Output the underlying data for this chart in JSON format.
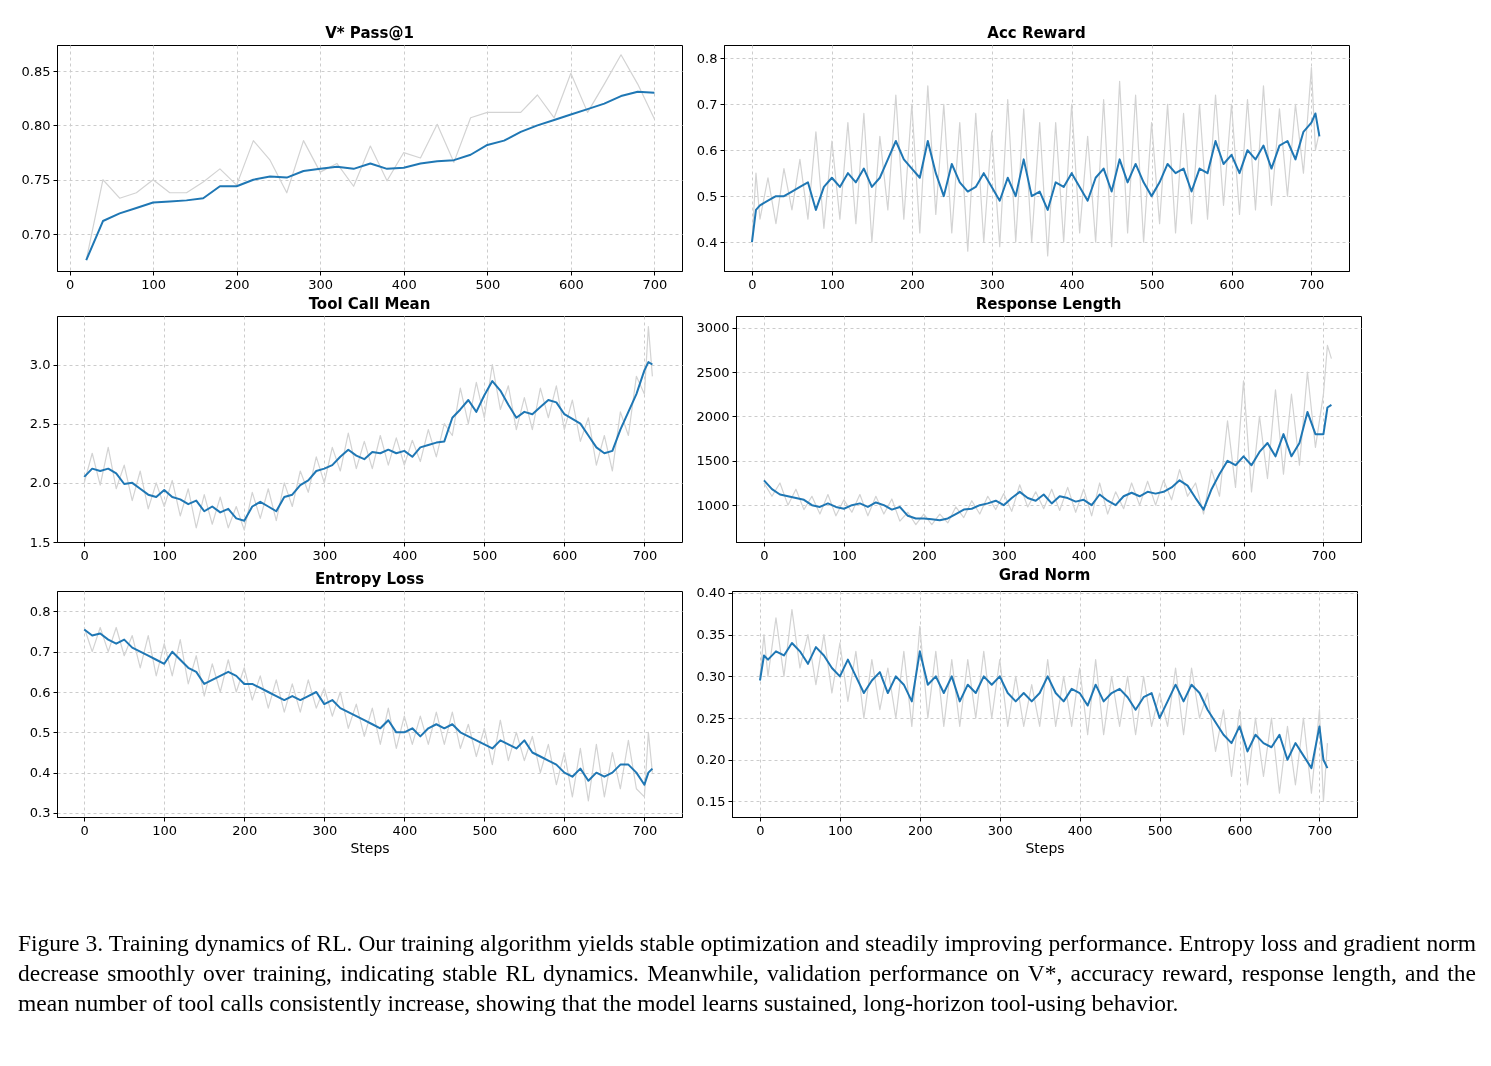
{
  "chart_data": [
    {
      "type": "line",
      "title": "V* Pass@1",
      "grid": true,
      "legend": false,
      "line_style": "solid",
      "marker": "none",
      "x": [
        20,
        40,
        60,
        80,
        100,
        120,
        140,
        160,
        180,
        200,
        220,
        240,
        260,
        280,
        300,
        320,
        340,
        360,
        380,
        400,
        420,
        440,
        460,
        480,
        500,
        520,
        540,
        560,
        580,
        600,
        620,
        640,
        660,
        680,
        700
      ],
      "xlim": [
        -15,
        733
      ],
      "xticks": [
        0,
        100,
        200,
        300,
        400,
        500,
        600,
        700
      ],
      "ylim": [
        0.666,
        0.874
      ],
      "yticks": [
        {
          "value": 0.7,
          "label": "0.70"
        },
        0.75,
        {
          "value": 0.8,
          "label": "0.80"
        },
        0.85
      ],
      "series": [
        {
          "color": "#d3d3d3",
          "values": [
            0.676,
            0.75,
            0.733,
            0.738,
            0.75,
            0.738,
            0.738,
            0.748,
            0.76,
            0.745,
            0.786,
            0.768,
            0.738,
            0.786,
            0.757,
            0.765,
            0.744,
            0.781,
            0.749,
            0.775,
            0.77,
            0.801,
            0.766,
            0.807,
            0.812,
            0.812,
            0.812,
            0.828,
            0.807,
            0.848,
            0.812,
            0.838,
            0.865,
            0.838,
            0.806
          ]
        },
        {
          "color": "#1f77b4",
          "values": [
            0.676,
            0.712,
            0.719,
            0.724,
            0.729,
            0.73,
            0.731,
            0.733,
            0.744,
            0.744,
            0.75,
            0.753,
            0.752,
            0.758,
            0.76,
            0.762,
            0.76,
            0.765,
            0.76,
            0.761,
            0.765,
            0.767,
            0.768,
            0.773,
            0.782,
            0.786,
            0.794,
            0.8,
            0.805,
            0.81,
            0.815,
            0.82,
            0.827,
            0.831,
            0.83
          ]
        }
      ]
    },
    {
      "type": "line",
      "title": "Acc Reward",
      "grid": true,
      "legend": false,
      "line_style": "solid",
      "marker": "none",
      "x": [
        0,
        5,
        10,
        20,
        30,
        40,
        50,
        60,
        70,
        80,
        90,
        100,
        110,
        120,
        130,
        140,
        150,
        160,
        170,
        180,
        190,
        200,
        210,
        220,
        230,
        240,
        250,
        260,
        270,
        280,
        290,
        300,
        310,
        320,
        330,
        340,
        350,
        360,
        370,
        380,
        390,
        400,
        410,
        420,
        430,
        440,
        450,
        460,
        470,
        480,
        490,
        500,
        510,
        520,
        530,
        540,
        550,
        560,
        570,
        580,
        590,
        600,
        610,
        620,
        630,
        640,
        650,
        660,
        670,
        680,
        690,
        700,
        705,
        710
      ],
      "xlim": [
        -35,
        747
      ],
      "xticks": [
        0,
        100,
        200,
        300,
        400,
        500,
        600,
        700
      ],
      "ylim": [
        0.337,
        0.829
      ],
      "yticks": [
        0.4,
        0.5,
        0.6,
        0.7,
        0.8
      ],
      "series": [
        {
          "color": "#d3d3d3",
          "values": [
            0.4,
            0.55,
            0.45,
            0.54,
            0.44,
            0.56,
            0.47,
            0.58,
            0.45,
            0.64,
            0.43,
            0.62,
            0.45,
            0.66,
            0.44,
            0.68,
            0.4,
            0.63,
            0.47,
            0.72,
            0.45,
            0.7,
            0.42,
            0.74,
            0.46,
            0.7,
            0.42,
            0.66,
            0.38,
            0.68,
            0.4,
            0.64,
            0.39,
            0.71,
            0.4,
            0.69,
            0.4,
            0.66,
            0.37,
            0.66,
            0.4,
            0.7,
            0.42,
            0.63,
            0.4,
            0.71,
            0.39,
            0.75,
            0.42,
            0.72,
            0.4,
            0.66,
            0.44,
            0.7,
            0.42,
            0.68,
            0.44,
            0.7,
            0.45,
            0.72,
            0.48,
            0.7,
            0.46,
            0.71,
            0.47,
            0.74,
            0.48,
            0.69,
            0.5,
            0.7,
            0.55,
            0.78,
            0.6,
            0.64
          ]
        },
        {
          "color": "#1f77b4",
          "values": [
            0.4,
            0.47,
            0.48,
            0.49,
            0.5,
            0.5,
            0.51,
            0.52,
            0.53,
            0.47,
            0.52,
            0.54,
            0.52,
            0.55,
            0.53,
            0.56,
            0.52,
            0.54,
            0.58,
            0.62,
            0.58,
            0.56,
            0.54,
            0.62,
            0.55,
            0.5,
            0.57,
            0.53,
            0.51,
            0.52,
            0.55,
            0.52,
            0.49,
            0.54,
            0.5,
            0.58,
            0.5,
            0.51,
            0.47,
            0.53,
            0.52,
            0.55,
            0.52,
            0.49,
            0.54,
            0.56,
            0.51,
            0.58,
            0.53,
            0.57,
            0.53,
            0.5,
            0.53,
            0.57,
            0.55,
            0.56,
            0.51,
            0.56,
            0.55,
            0.62,
            0.57,
            0.59,
            0.55,
            0.6,
            0.58,
            0.61,
            0.56,
            0.61,
            0.62,
            0.58,
            0.64,
            0.66,
            0.68,
            0.63
          ]
        }
      ]
    },
    {
      "type": "line",
      "title": "Tool Call Mean",
      "grid": true,
      "legend": false,
      "line_style": "solid",
      "marker": "none",
      "x": [
        0,
        10,
        20,
        30,
        40,
        50,
        60,
        70,
        80,
        90,
        100,
        110,
        120,
        130,
        140,
        150,
        160,
        170,
        180,
        190,
        200,
        210,
        220,
        230,
        240,
        250,
        260,
        270,
        280,
        290,
        300,
        310,
        320,
        330,
        340,
        350,
        360,
        370,
        380,
        390,
        400,
        410,
        420,
        430,
        440,
        450,
        460,
        470,
        480,
        490,
        500,
        510,
        520,
        530,
        540,
        550,
        560,
        570,
        580,
        590,
        600,
        610,
        620,
        630,
        640,
        650,
        660,
        670,
        680,
        690,
        700,
        705,
        710
      ],
      "xlim": [
        -34,
        747
      ],
      "xticks": [
        0,
        100,
        200,
        300,
        400,
        500,
        600,
        700
      ],
      "ylim": [
        1.5,
        3.41
      ],
      "yticks": [
        1.5,
        {
          "value": 2,
          "label": "2.0"
        },
        2.5,
        {
          "value": 3,
          "label": "3.0"
        }
      ],
      "series": [
        {
          "color": "#d3d3d3",
          "values": [
            2.0,
            2.25,
            1.98,
            2.3,
            1.95,
            2.15,
            1.85,
            2.1,
            1.78,
            2.0,
            1.8,
            2.02,
            1.72,
            1.95,
            1.62,
            1.9,
            1.65,
            1.88,
            1.62,
            1.8,
            1.6,
            1.92,
            1.7,
            1.95,
            1.68,
            2.0,
            1.8,
            2.1,
            1.92,
            2.22,
            2.0,
            2.3,
            2.1,
            2.42,
            2.12,
            2.35,
            2.12,
            2.4,
            2.15,
            2.38,
            2.15,
            2.36,
            2.18,
            2.45,
            2.22,
            2.5,
            2.4,
            2.8,
            2.5,
            2.85,
            2.55,
            3.0,
            2.62,
            2.82,
            2.45,
            2.72,
            2.45,
            2.8,
            2.55,
            2.82,
            2.45,
            2.7,
            2.35,
            2.55,
            2.15,
            2.4,
            2.1,
            2.6,
            2.4,
            2.9,
            2.75,
            3.32,
            2.9
          ]
        },
        {
          "color": "#1f77b4",
          "values": [
            2.05,
            2.12,
            2.1,
            2.12,
            2.08,
            1.99,
            2.0,
            1.95,
            1.9,
            1.88,
            1.94,
            1.88,
            1.86,
            1.82,
            1.85,
            1.76,
            1.8,
            1.75,
            1.78,
            1.7,
            1.68,
            1.8,
            1.84,
            1.8,
            1.76,
            1.88,
            1.9,
            1.98,
            2.02,
            2.1,
            2.12,
            2.15,
            2.22,
            2.28,
            2.23,
            2.2,
            2.26,
            2.25,
            2.28,
            2.25,
            2.27,
            2.22,
            2.3,
            2.32,
            2.34,
            2.35,
            2.55,
            2.62,
            2.7,
            2.6,
            2.74,
            2.86,
            2.78,
            2.66,
            2.55,
            2.6,
            2.58,
            2.64,
            2.7,
            2.68,
            2.58,
            2.54,
            2.5,
            2.4,
            2.3,
            2.25,
            2.27,
            2.45,
            2.6,
            2.75,
            2.95,
            3.02,
            3.0
          ]
        }
      ]
    },
    {
      "type": "line",
      "title": "Response Length",
      "grid": true,
      "legend": false,
      "line_style": "solid",
      "marker": "none",
      "x": [
        0,
        10,
        20,
        30,
        40,
        50,
        60,
        70,
        80,
        90,
        100,
        110,
        120,
        130,
        140,
        150,
        160,
        170,
        180,
        190,
        200,
        210,
        220,
        230,
        240,
        250,
        260,
        270,
        280,
        290,
        300,
        310,
        320,
        330,
        340,
        350,
        360,
        370,
        380,
        390,
        400,
        410,
        420,
        430,
        440,
        450,
        460,
        470,
        480,
        490,
        500,
        510,
        520,
        530,
        540,
        550,
        560,
        570,
        580,
        590,
        600,
        610,
        620,
        630,
        640,
        650,
        660,
        670,
        680,
        690,
        700,
        705,
        710
      ],
      "xlim": [
        -35,
        747
      ],
      "xticks": [
        0,
        100,
        200,
        300,
        400,
        500,
        600,
        700
      ],
      "ylim": [
        585,
        3131
      ],
      "yticks": [
        {
          "value": 1000,
          "label": "1000"
        },
        {
          "value": 1500,
          "label": "1500"
        },
        {
          "value": 2000,
          "label": "2000"
        },
        {
          "value": 2500,
          "label": "2500"
        },
        {
          "value": 3000,
          "label": "3000"
        }
      ],
      "series": [
        {
          "color": "#d3d3d3",
          "values": [
            1250,
            1100,
            1250,
            1000,
            1180,
            950,
            1100,
            900,
            1120,
            880,
            1060,
            920,
            1120,
            880,
            1100,
            900,
            1070,
            820,
            920,
            780,
            900,
            780,
            900,
            800,
            980,
            860,
            1050,
            900,
            1100,
            950,
            1130,
            930,
            1230,
            980,
            1150,
            960,
            1180,
            940,
            1200,
            920,
            1180,
            880,
            1250,
            900,
            1150,
            960,
            1250,
            1000,
            1270,
            1000,
            1280,
            1060,
            1400,
            1100,
            1250,
            900,
            1400,
            1100,
            1950,
            1200,
            2400,
            1150,
            2000,
            1300,
            2300,
            1350,
            2250,
            1450,
            2500,
            1650,
            2250,
            2800,
            2650
          ]
        },
        {
          "color": "#1f77b4",
          "values": [
            1280,
            1180,
            1120,
            1100,
            1080,
            1060,
            1000,
            980,
            1020,
            980,
            960,
            1000,
            1020,
            980,
            1030,
            1000,
            950,
            980,
            880,
            850,
            850,
            840,
            830,
            850,
            900,
            950,
            960,
            1000,
            1020,
            1050,
            1000,
            1080,
            1150,
            1080,
            1050,
            1120,
            1020,
            1100,
            1080,
            1040,
            1060,
            1000,
            1120,
            1050,
            1000,
            1100,
            1140,
            1100,
            1150,
            1130,
            1150,
            1200,
            1280,
            1220,
            1080,
            950,
            1180,
            1350,
            1500,
            1450,
            1550,
            1450,
            1600,
            1700,
            1550,
            1800,
            1550,
            1700,
            2050,
            1800,
            1800,
            2100,
            2130
          ]
        }
      ]
    },
    {
      "type": "line",
      "title": "Entropy Loss",
      "xlabel": "Steps",
      "grid": true,
      "legend": false,
      "line_style": "solid",
      "marker": "none",
      "x": [
        0,
        10,
        20,
        30,
        40,
        50,
        60,
        70,
        80,
        90,
        100,
        110,
        120,
        130,
        140,
        150,
        160,
        170,
        180,
        190,
        200,
        210,
        220,
        230,
        240,
        250,
        260,
        270,
        280,
        290,
        300,
        310,
        320,
        330,
        340,
        350,
        360,
        370,
        380,
        390,
        400,
        410,
        420,
        430,
        440,
        450,
        460,
        470,
        480,
        490,
        500,
        510,
        520,
        530,
        540,
        550,
        560,
        570,
        580,
        590,
        600,
        610,
        620,
        630,
        640,
        650,
        660,
        670,
        680,
        690,
        700,
        705,
        710
      ],
      "xlim": [
        -34,
        747
      ],
      "xticks": [
        0,
        100,
        200,
        300,
        400,
        500,
        600,
        700
      ],
      "ylim": [
        0.29,
        0.8505
      ],
      "yticks": [
        0.3,
        0.4,
        0.5,
        0.6,
        0.7,
        0.8
      ],
      "series": [
        {
          "color": "#d3d3d3",
          "values": [
            0.76,
            0.7,
            0.76,
            0.7,
            0.76,
            0.69,
            0.74,
            0.66,
            0.74,
            0.64,
            0.72,
            0.64,
            0.73,
            0.62,
            0.69,
            0.59,
            0.67,
            0.6,
            0.68,
            0.6,
            0.66,
            0.58,
            0.64,
            0.56,
            0.63,
            0.55,
            0.62,
            0.55,
            0.63,
            0.56,
            0.61,
            0.54,
            0.6,
            0.51,
            0.57,
            0.49,
            0.56,
            0.47,
            0.56,
            0.46,
            0.54,
            0.47,
            0.54,
            0.47,
            0.55,
            0.47,
            0.55,
            0.46,
            0.52,
            0.44,
            0.51,
            0.42,
            0.53,
            0.43,
            0.5,
            0.43,
            0.49,
            0.4,
            0.47,
            0.37,
            0.45,
            0.34,
            0.46,
            0.33,
            0.47,
            0.34,
            0.45,
            0.36,
            0.48,
            0.36,
            0.34,
            0.5,
            0.4
          ]
        },
        {
          "color": "#1f77b4",
          "values": [
            0.755,
            0.74,
            0.745,
            0.73,
            0.72,
            0.73,
            0.71,
            0.7,
            0.69,
            0.68,
            0.67,
            0.7,
            0.68,
            0.66,
            0.65,
            0.62,
            0.63,
            0.64,
            0.65,
            0.64,
            0.62,
            0.62,
            0.61,
            0.6,
            0.59,
            0.58,
            0.59,
            0.58,
            0.59,
            0.6,
            0.57,
            0.58,
            0.56,
            0.55,
            0.54,
            0.53,
            0.52,
            0.51,
            0.53,
            0.5,
            0.5,
            0.51,
            0.49,
            0.51,
            0.52,
            0.51,
            0.52,
            0.5,
            0.49,
            0.48,
            0.47,
            0.46,
            0.48,
            0.47,
            0.46,
            0.48,
            0.45,
            0.44,
            0.43,
            0.42,
            0.4,
            0.39,
            0.41,
            0.38,
            0.4,
            0.39,
            0.4,
            0.42,
            0.42,
            0.4,
            0.37,
            0.4,
            0.41
          ]
        }
      ]
    },
    {
      "type": "line",
      "title": "Grad Norm",
      "xlabel": "Steps",
      "grid": true,
      "legend": false,
      "line_style": "solid",
      "marker": "none",
      "x": [
        0,
        5,
        10,
        20,
        30,
        40,
        50,
        60,
        70,
        80,
        90,
        100,
        110,
        120,
        130,
        140,
        150,
        160,
        170,
        180,
        190,
        200,
        210,
        220,
        230,
        240,
        250,
        260,
        270,
        280,
        290,
        300,
        310,
        320,
        330,
        340,
        350,
        360,
        370,
        380,
        390,
        400,
        410,
        420,
        430,
        440,
        450,
        460,
        470,
        480,
        490,
        500,
        510,
        520,
        530,
        540,
        550,
        560,
        570,
        580,
        590,
        600,
        610,
        620,
        630,
        640,
        650,
        660,
        670,
        680,
        690,
        700,
        705,
        710
      ],
      "xlim": [
        -35,
        747
      ],
      "xticks": [
        0,
        100,
        200,
        300,
        400,
        500,
        600,
        700
      ],
      "ylim": [
        0.1314,
        0.4023
      ],
      "yticks": [
        0.15,
        {
          "value": 0.2,
          "label": "0.20"
        },
        0.25,
        {
          "value": 0.3,
          "label": "0.30"
        },
        0.35,
        {
          "value": 0.4,
          "label": "0.40"
        }
      ],
      "annotations": [
        "Figure 3. Training dynamics of RL. Our training algorithm yields stable optimization and steadily improving performance. Entropy loss and gradient norm decrease smoothly over training, indicating stable RL dynamics. Meanwhile, validation performance on V*, accuracy reward, response length, and the mean number of tool calls consistently increase, showing that the model learns sustained, long-horizon tool-using behavior."
      ],
      "series": [
        {
          "color": "#d3d3d3",
          "values": [
            0.3,
            0.35,
            0.3,
            0.37,
            0.3,
            0.38,
            0.31,
            0.35,
            0.29,
            0.35,
            0.28,
            0.34,
            0.27,
            0.33,
            0.25,
            0.32,
            0.26,
            0.31,
            0.25,
            0.33,
            0.24,
            0.36,
            0.25,
            0.33,
            0.24,
            0.32,
            0.24,
            0.32,
            0.25,
            0.33,
            0.25,
            0.32,
            0.24,
            0.3,
            0.24,
            0.29,
            0.24,
            0.32,
            0.24,
            0.3,
            0.24,
            0.31,
            0.23,
            0.32,
            0.23,
            0.3,
            0.24,
            0.3,
            0.23,
            0.3,
            0.24,
            0.28,
            0.24,
            0.31,
            0.23,
            0.31,
            0.25,
            0.28,
            0.21,
            0.26,
            0.18,
            0.26,
            0.17,
            0.25,
            0.18,
            0.25,
            0.16,
            0.24,
            0.17,
            0.25,
            0.16,
            0.26,
            0.15,
            0.22
          ]
        },
        {
          "color": "#1f77b4",
          "values": [
            0.295,
            0.325,
            0.32,
            0.33,
            0.325,
            0.34,
            0.33,
            0.315,
            0.335,
            0.325,
            0.31,
            0.3,
            0.32,
            0.3,
            0.28,
            0.295,
            0.305,
            0.28,
            0.3,
            0.29,
            0.27,
            0.33,
            0.29,
            0.3,
            0.28,
            0.3,
            0.27,
            0.29,
            0.28,
            0.3,
            0.29,
            0.3,
            0.28,
            0.27,
            0.28,
            0.27,
            0.28,
            0.3,
            0.28,
            0.27,
            0.285,
            0.28,
            0.265,
            0.29,
            0.27,
            0.28,
            0.285,
            0.275,
            0.26,
            0.275,
            0.28,
            0.25,
            0.27,
            0.29,
            0.27,
            0.29,
            0.28,
            0.26,
            0.245,
            0.23,
            0.22,
            0.24,
            0.21,
            0.23,
            0.22,
            0.215,
            0.23,
            0.2,
            0.22,
            0.205,
            0.19,
            0.24,
            0.2,
            0.19
          ]
        }
      ]
    }
  ]
}
